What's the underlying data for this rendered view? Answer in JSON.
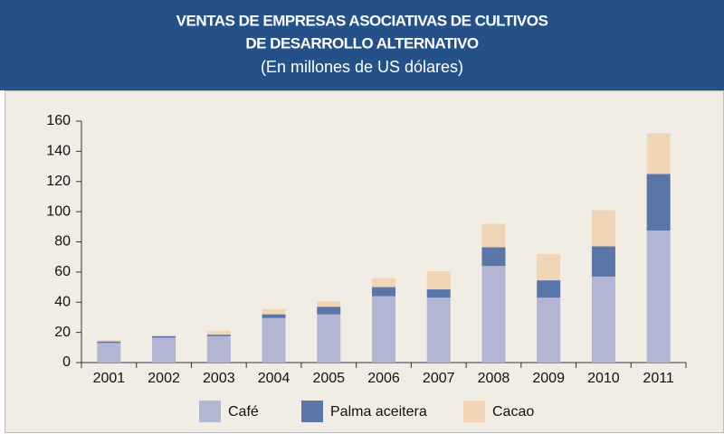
{
  "chart_data": {
    "type": "stacked-bar",
    "title": [
      "VENTAS DE EMPRESAS ASOCIATIVAS DE CULTIVOS",
      "DE DESARROLLO ALTERNATIVO"
    ],
    "subtitle": "(En millones de US dólares)",
    "categories": [
      "2001",
      "2002",
      "2003",
      "2004",
      "2005",
      "2006",
      "2007",
      "2008",
      "2009",
      "2010",
      "2011"
    ],
    "series": [
      {
        "name": "Café",
        "color": "#b3b5d4",
        "values": [
          13,
          16.5,
          17.5,
          29.5,
          32,
          44,
          43,
          64,
          43,
          57,
          87.5
        ]
      },
      {
        "name": "Palma aceitera",
        "color": "#5a76a8",
        "values": [
          1,
          1,
          1,
          2.5,
          5,
          6,
          5.5,
          12.5,
          11.5,
          20,
          37.5
        ]
      },
      {
        "name": "Cacao",
        "color": "#f0d6b6",
        "values": [
          1,
          0.5,
          2.5,
          3.5,
          3.5,
          6,
          12,
          15.5,
          17.5,
          24,
          27
        ]
      }
    ],
    "ylim": [
      0,
      160
    ],
    "yticks": [
      0,
      20,
      40,
      60,
      80,
      100,
      120,
      140,
      160
    ],
    "grid": false
  }
}
